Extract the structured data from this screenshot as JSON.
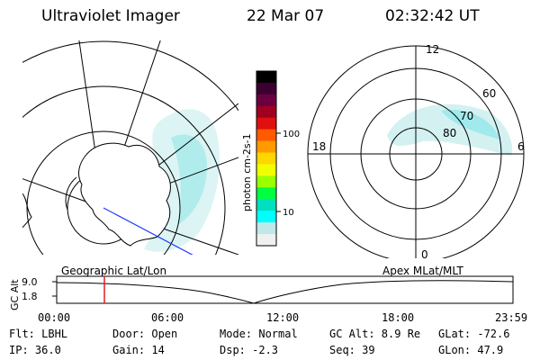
{
  "header": {
    "title": "Ultraviolet Imager",
    "date": "22 Mar 07",
    "time": "02:32:42 UT"
  },
  "colorbar": {
    "label": "photon cm-2s-1",
    "ticks": [
      "100",
      "10"
    ],
    "colors": [
      "#000000",
      "#3b0030",
      "#6a0040",
      "#a00020",
      "#e01010",
      "#ff5a00",
      "#ff9a00",
      "#ffd700",
      "#f0ff00",
      "#9cff00",
      "#00ff40",
      "#00e0c0",
      "#00ffff",
      "#c0e8e8",
      "#f0f0f0"
    ]
  },
  "polar_plot": {
    "mlt_labels": [
      "12",
      "18",
      "6",
      "0"
    ],
    "lat_labels": [
      "60",
      "70",
      "80"
    ]
  },
  "lower_labels": {
    "left": "Geographic Lat/Lon",
    "right": "Apex MLat/MLT"
  },
  "altitude_plot": {
    "ylabel": "GC Alt",
    "yticks": [
      "9.0",
      "1.8"
    ],
    "xticks": [
      "00:00",
      "06:00",
      "12:00",
      "18:00",
      "23:59"
    ],
    "marker_time": "02:32:42"
  },
  "footer": {
    "row1": {
      "flt": "Flt: LBHL",
      "door": "Door: Open",
      "mode": "Mode: Normal",
      "gcalt": "GC Alt: 8.9 Re",
      "glat": "GLat: -72.6"
    },
    "row2": {
      "ip": "IP: 36.0",
      "gain": "Gain: 14",
      "dsp": "Dsp:    -2.3",
      "seq": "Seq: 39",
      "glon": "GLon:  47.9"
    }
  }
}
